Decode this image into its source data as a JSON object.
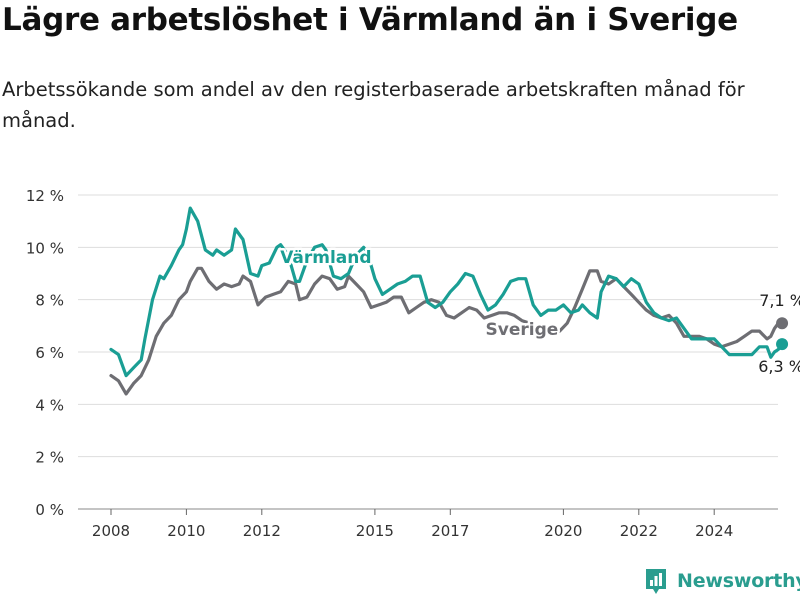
{
  "title": "Lägre arbetslöshet i Värmland än i Sverige",
  "subtitle": "Arbetssökande som andel av den registerbaserade arbetskraften månad för månad.",
  "brand": "Newsworthy",
  "colors": {
    "varmland": "#1a9e94",
    "sverige": "#6e6e73",
    "grid": "#dddddd",
    "axis": "#333333",
    "brand": "#2a9d8f"
  },
  "chart_data": {
    "type": "line",
    "ylim": [
      0,
      12
    ],
    "xlim": [
      2007.6,
      2025.8
    ],
    "y_ticks": [
      0,
      2,
      4,
      6,
      8,
      10,
      12
    ],
    "y_tick_labels": [
      "0 %",
      "2 %",
      "4 %",
      "6 %",
      "8 %",
      "10 %",
      "12 %"
    ],
    "x_ticks": [
      2008,
      2010,
      2012,
      2015,
      2017,
      2020,
      2022,
      2024
    ],
    "x_tick_labels": [
      "2008",
      "2010",
      "2012",
      "2015",
      "2017",
      "2020",
      "2022",
      "2024"
    ],
    "grid": true,
    "series": [
      {
        "name": "Värmland",
        "end_label": "6,3 %",
        "points": [
          [
            2008.0,
            6.1
          ],
          [
            2008.2,
            5.9
          ],
          [
            2008.4,
            5.1
          ],
          [
            2008.6,
            5.4
          ],
          [
            2008.8,
            5.7
          ],
          [
            2008.9,
            6.5
          ],
          [
            2009.1,
            8.0
          ],
          [
            2009.3,
            8.9
          ],
          [
            2009.4,
            8.8
          ],
          [
            2009.6,
            9.3
          ],
          [
            2009.8,
            9.9
          ],
          [
            2009.9,
            10.1
          ],
          [
            2010.0,
            10.7
          ],
          [
            2010.1,
            11.5
          ],
          [
            2010.3,
            11.0
          ],
          [
            2010.5,
            9.9
          ],
          [
            2010.7,
            9.7
          ],
          [
            2010.8,
            9.9
          ],
          [
            2011.0,
            9.7
          ],
          [
            2011.2,
            9.9
          ],
          [
            2011.3,
            10.7
          ],
          [
            2011.5,
            10.3
          ],
          [
            2011.7,
            9.0
          ],
          [
            2011.9,
            8.9
          ],
          [
            2012.0,
            9.3
          ],
          [
            2012.2,
            9.4
          ],
          [
            2012.4,
            10.0
          ],
          [
            2012.5,
            10.1
          ],
          [
            2012.7,
            9.7
          ],
          [
            2012.9,
            8.7
          ],
          [
            2013.0,
            8.7
          ],
          [
            2013.2,
            9.5
          ],
          [
            2013.4,
            10.0
          ],
          [
            2013.6,
            10.1
          ],
          [
            2013.7,
            9.9
          ],
          [
            2013.9,
            8.9
          ],
          [
            2014.1,
            8.8
          ],
          [
            2014.3,
            9.0
          ],
          [
            2014.5,
            9.7
          ],
          [
            2014.7,
            10.0
          ],
          [
            2014.8,
            9.8
          ],
          [
            2015.0,
            8.8
          ],
          [
            2015.2,
            8.2
          ],
          [
            2015.4,
            8.4
          ],
          [
            2015.6,
            8.6
          ],
          [
            2015.8,
            8.7
          ],
          [
            2016.0,
            8.9
          ],
          [
            2016.2,
            8.9
          ],
          [
            2016.4,
            7.9
          ],
          [
            2016.6,
            7.7
          ],
          [
            2016.8,
            7.9
          ],
          [
            2017.0,
            8.3
          ],
          [
            2017.2,
            8.6
          ],
          [
            2017.4,
            9.0
          ],
          [
            2017.6,
            8.9
          ],
          [
            2017.8,
            8.2
          ],
          [
            2018.0,
            7.6
          ],
          [
            2018.2,
            7.8
          ],
          [
            2018.4,
            8.2
          ],
          [
            2018.6,
            8.7
          ],
          [
            2018.8,
            8.8
          ],
          [
            2019.0,
            8.8
          ],
          [
            2019.2,
            7.8
          ],
          [
            2019.4,
            7.4
          ],
          [
            2019.6,
            7.6
          ],
          [
            2019.8,
            7.6
          ],
          [
            2020.0,
            7.8
          ],
          [
            2020.2,
            7.5
          ],
          [
            2020.4,
            7.6
          ],
          [
            2020.5,
            7.8
          ],
          [
            2020.7,
            7.5
          ],
          [
            2020.9,
            7.3
          ],
          [
            2021.0,
            8.3
          ],
          [
            2021.2,
            8.9
          ],
          [
            2021.4,
            8.8
          ],
          [
            2021.6,
            8.5
          ],
          [
            2021.8,
            8.8
          ],
          [
            2022.0,
            8.6
          ],
          [
            2022.2,
            7.9
          ],
          [
            2022.4,
            7.5
          ],
          [
            2022.6,
            7.3
          ],
          [
            2022.8,
            7.2
          ],
          [
            2023.0,
            7.3
          ],
          [
            2023.2,
            6.9
          ],
          [
            2023.4,
            6.5
          ],
          [
            2023.6,
            6.5
          ],
          [
            2023.8,
            6.5
          ],
          [
            2024.0,
            6.5
          ],
          [
            2024.2,
            6.2
          ],
          [
            2024.4,
            5.9
          ],
          [
            2024.6,
            5.9
          ],
          [
            2024.8,
            5.9
          ],
          [
            2025.0,
            5.9
          ],
          [
            2025.2,
            6.2
          ],
          [
            2025.4,
            6.2
          ],
          [
            2025.5,
            5.8
          ],
          [
            2025.6,
            6.0
          ],
          [
            2025.7,
            6.1
          ],
          [
            2025.8,
            6.3
          ]
        ]
      },
      {
        "name": "Sverige",
        "end_label": "7,1 %",
        "points": [
          [
            2008.0,
            5.1
          ],
          [
            2008.2,
            4.9
          ],
          [
            2008.4,
            4.4
          ],
          [
            2008.6,
            4.8
          ],
          [
            2008.8,
            5.1
          ],
          [
            2009.0,
            5.7
          ],
          [
            2009.2,
            6.6
          ],
          [
            2009.4,
            7.1
          ],
          [
            2009.6,
            7.4
          ],
          [
            2009.8,
            8.0
          ],
          [
            2010.0,
            8.3
          ],
          [
            2010.1,
            8.7
          ],
          [
            2010.3,
            9.2
          ],
          [
            2010.4,
            9.2
          ],
          [
            2010.6,
            8.7
          ],
          [
            2010.8,
            8.4
          ],
          [
            2011.0,
            8.6
          ],
          [
            2011.2,
            8.5
          ],
          [
            2011.4,
            8.6
          ],
          [
            2011.5,
            8.9
          ],
          [
            2011.7,
            8.7
          ],
          [
            2011.9,
            7.8
          ],
          [
            2012.1,
            8.1
          ],
          [
            2012.3,
            8.2
          ],
          [
            2012.5,
            8.3
          ],
          [
            2012.7,
            8.7
          ],
          [
            2012.9,
            8.6
          ],
          [
            2013.0,
            8.0
          ],
          [
            2013.2,
            8.1
          ],
          [
            2013.4,
            8.6
          ],
          [
            2013.6,
            8.9
          ],
          [
            2013.8,
            8.8
          ],
          [
            2014.0,
            8.4
          ],
          [
            2014.2,
            8.5
          ],
          [
            2014.3,
            8.9
          ],
          [
            2014.5,
            8.6
          ],
          [
            2014.7,
            8.3
          ],
          [
            2014.9,
            7.7
          ],
          [
            2015.1,
            7.8
          ],
          [
            2015.3,
            7.9
          ],
          [
            2015.5,
            8.1
          ],
          [
            2015.7,
            8.1
          ],
          [
            2015.9,
            7.5
          ],
          [
            2016.1,
            7.7
          ],
          [
            2016.3,
            7.9
          ],
          [
            2016.5,
            8.0
          ],
          [
            2016.7,
            7.9
          ],
          [
            2016.9,
            7.4
          ],
          [
            2017.1,
            7.3
          ],
          [
            2017.3,
            7.5
          ],
          [
            2017.5,
            7.7
          ],
          [
            2017.7,
            7.6
          ],
          [
            2017.9,
            7.3
          ],
          [
            2018.1,
            7.4
          ],
          [
            2018.3,
            7.5
          ],
          [
            2018.5,
            7.5
          ],
          [
            2018.7,
            7.4
          ],
          [
            2018.9,
            7.2
          ],
          [
            2019.1,
            7.1
          ],
          [
            2019.3,
            6.9
          ],
          [
            2019.5,
            6.9
          ],
          [
            2019.7,
            7.0
          ],
          [
            2019.9,
            6.8
          ],
          [
            2020.1,
            7.1
          ],
          [
            2020.3,
            7.7
          ],
          [
            2020.5,
            8.4
          ],
          [
            2020.7,
            9.1
          ],
          [
            2020.9,
            9.1
          ],
          [
            2021.0,
            8.7
          ],
          [
            2021.2,
            8.6
          ],
          [
            2021.4,
            8.8
          ],
          [
            2021.6,
            8.5
          ],
          [
            2021.8,
            8.2
          ],
          [
            2022.0,
            7.9
          ],
          [
            2022.2,
            7.6
          ],
          [
            2022.4,
            7.4
          ],
          [
            2022.6,
            7.3
          ],
          [
            2022.8,
            7.4
          ],
          [
            2023.0,
            7.1
          ],
          [
            2023.2,
            6.6
          ],
          [
            2023.4,
            6.6
          ],
          [
            2023.6,
            6.6
          ],
          [
            2023.8,
            6.5
          ],
          [
            2024.0,
            6.3
          ],
          [
            2024.2,
            6.2
          ],
          [
            2024.4,
            6.3
          ],
          [
            2024.6,
            6.4
          ],
          [
            2024.8,
            6.6
          ],
          [
            2025.0,
            6.8
          ],
          [
            2025.2,
            6.8
          ],
          [
            2025.4,
            6.5
          ],
          [
            2025.5,
            6.6
          ],
          [
            2025.6,
            6.9
          ],
          [
            2025.7,
            7.1
          ],
          [
            2025.8,
            7.1
          ]
        ]
      }
    ]
  }
}
